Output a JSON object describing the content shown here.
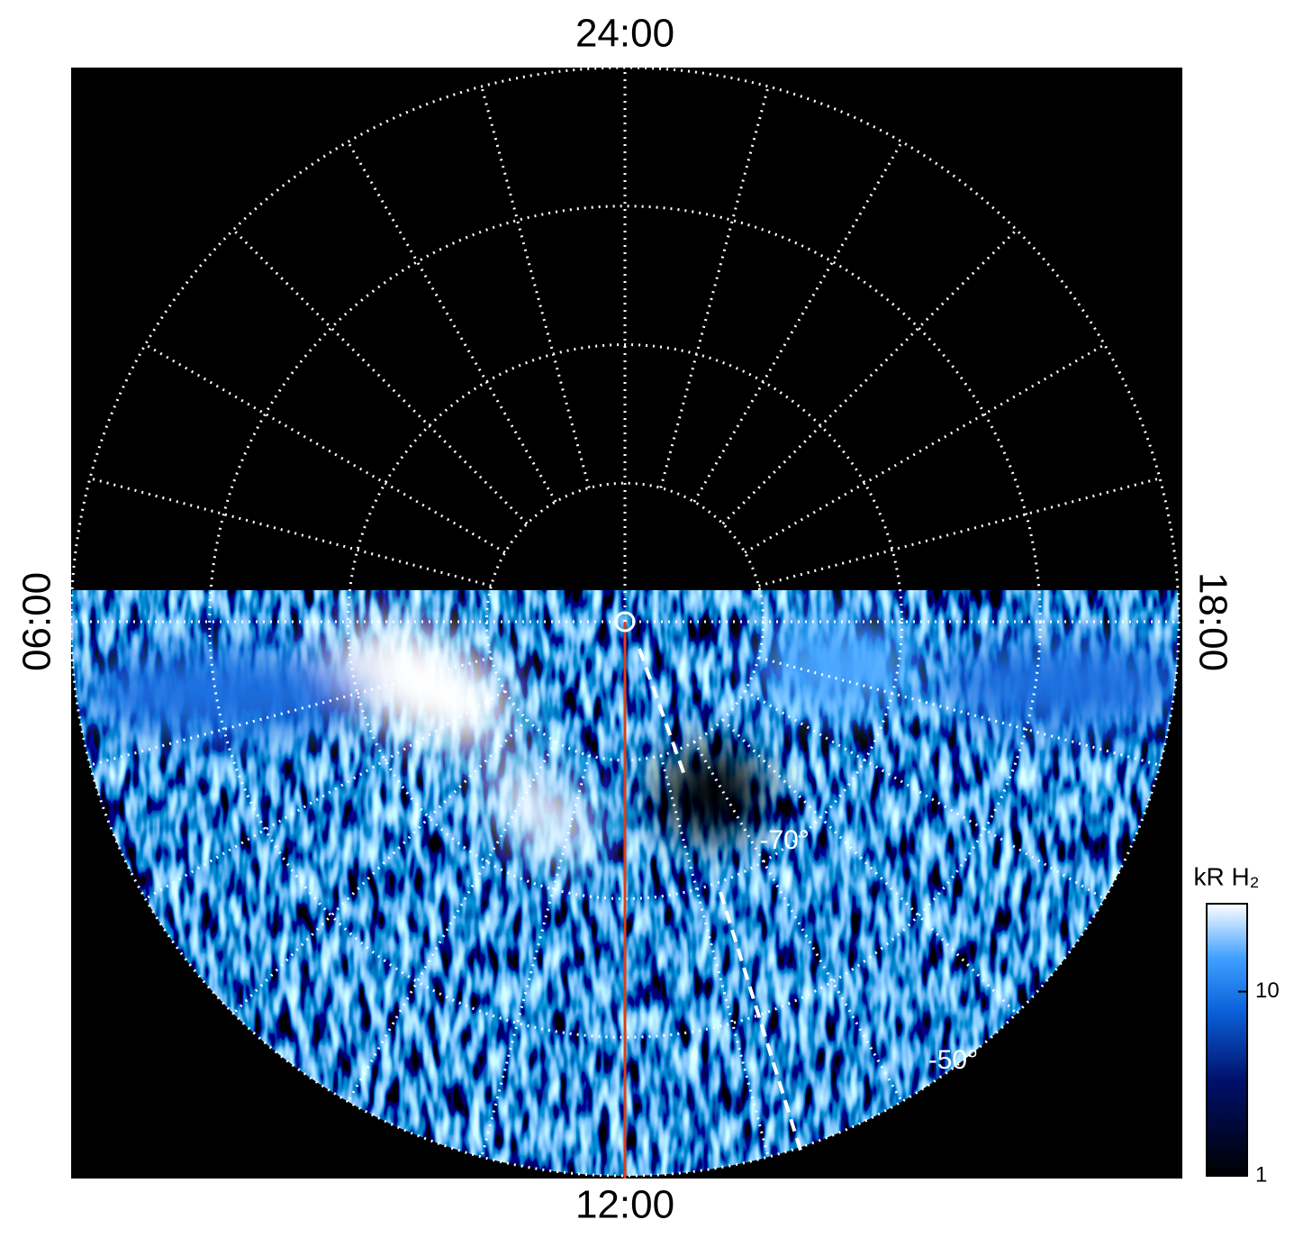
{
  "chart_data": {
    "type": "polar",
    "theta_labels": [
      {
        "value": 24,
        "label": "24:00"
      },
      {
        "value": 6,
        "label": "06:00"
      },
      {
        "value": 12,
        "label": "12:00"
      },
      {
        "value": 18,
        "label": "18:00"
      }
    ],
    "theta_grid_step": 1,
    "rlim": [
      -90,
      -50
    ],
    "rgrid": [
      -80,
      -70,
      -60,
      -50
    ],
    "rticks": [
      {
        "value": -70,
        "label": "-70°"
      },
      {
        "value": -50,
        "label": "-50°"
      }
    ],
    "colorbar": {
      "label": "kR H₂",
      "scale": "log",
      "lim": [
        1,
        30
      ],
      "ticks": [
        1,
        10
      ]
    }
  }
}
